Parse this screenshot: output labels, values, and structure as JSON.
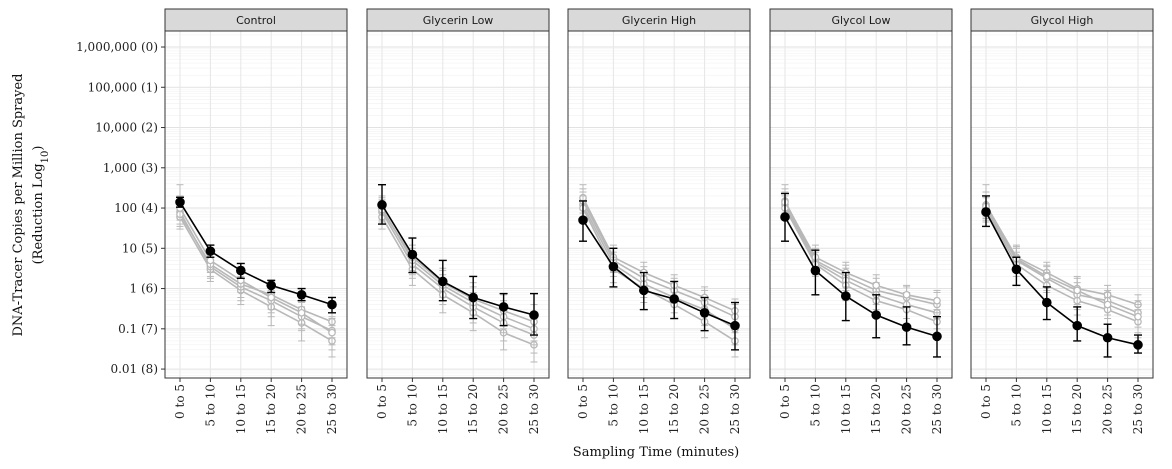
{
  "chart_data": {
    "type": "line",
    "xlabel": "Sampling Time (minutes)",
    "ylabel_line1": "DNA-Tracer Copies per Million Sprayed",
    "ylabel_line2_prefix": "(Reduction Log",
    "ylabel_line2_sub": "10",
    "ylabel_line2_suffix": ")",
    "yscale": "log10",
    "ylim": [
      0.006,
      2500000
    ],
    "ytick_values": [
      1000000,
      100000,
      10000,
      1000,
      100,
      10,
      1,
      0.1,
      0.01
    ],
    "ytick_labels": [
      "1,000,000 (0)",
      "100,000 (1)",
      "10,000 (2)",
      "1,000 (3)",
      "100 (4)",
      "10 (5)",
      "1 (6)",
      "0.1 (7)",
      "0.01 (8)"
    ],
    "categories": [
      "0 to 5",
      "5 to 10",
      "10 to 15",
      "15 to 20",
      "20 to 25",
      "25 to 30"
    ],
    "grid": true,
    "highlight_color": "#000000",
    "background_color": "#b8b8b8",
    "panels": [
      {
        "title": "Control",
        "main": {
          "values": [
            140,
            8.5,
            2.8,
            1.2,
            0.7,
            0.4
          ],
          "err_low": [
            105,
            6.0,
            1.8,
            0.8,
            0.5,
            0.25
          ],
          "err_high": [
            185,
            12.0,
            4.2,
            1.6,
            1.0,
            0.6
          ]
        },
        "background": [
          {
            "values": [
              60,
              3.0,
              0.9,
              0.35,
              0.14,
              0.05
            ],
            "err_low": [
              30,
              1.5,
              0.4,
              0.12,
              0.05,
              0.02
            ],
            "err_high": [
              110,
              6.0,
              2.0,
              0.9,
              0.35,
              0.12
            ]
          },
          {
            "values": [
              80,
              3.5,
              1.1,
              0.5,
              0.2,
              0.09
            ],
            "err_low": [
              40,
              1.8,
              0.5,
              0.2,
              0.09,
              0.04
            ],
            "err_high": [
              150,
              7.0,
              2.5,
              1.1,
              0.45,
              0.2
            ]
          },
          {
            "values": [
              70,
              4.0,
              1.3,
              0.7,
              0.3,
              0.15
            ],
            "err_low": [
              35,
              2.0,
              0.6,
              0.3,
              0.13,
              0.06
            ],
            "err_high": [
              200,
              8.0,
              3.0,
              1.5,
              0.7,
              0.35
            ]
          },
          {
            "values": [
              100,
              5.0,
              1.6,
              0.6,
              0.25,
              0.08
            ],
            "err_low": [
              50,
              2.5,
              0.8,
              0.25,
              0.1,
              0.03
            ],
            "err_high": [
              380,
              10.0,
              3.5,
              1.3,
              0.55,
              0.18
            ]
          }
        ]
      },
      {
        "title": "Glycerin Low",
        "main": {
          "values": [
            120,
            7.0,
            1.5,
            0.6,
            0.35,
            0.22
          ],
          "err_low": [
            40,
            2.5,
            0.5,
            0.18,
            0.12,
            0.07
          ],
          "err_high": [
            380,
            18.0,
            5.0,
            2.0,
            0.75,
            0.75
          ]
        },
        "background": [
          {
            "values": [
              60,
              3.0,
              0.7,
              0.25,
              0.08,
              0.04
            ],
            "err_low": [
              30,
              1.2,
              0.25,
              0.09,
              0.03,
              0.015
            ],
            "err_high": [
              120,
              6.0,
              1.5,
              0.6,
              0.2,
              0.1
            ]
          },
          {
            "values": [
              80,
              4.0,
              1.0,
              0.35,
              0.14,
              0.07
            ],
            "err_low": [
              40,
              1.8,
              0.4,
              0.14,
              0.05,
              0.025
            ],
            "err_high": [
              160,
              8.0,
              2.2,
              0.8,
              0.35,
              0.18
            ]
          },
          {
            "values": [
              100,
              5.0,
              1.2,
              0.45,
              0.2,
              0.1
            ],
            "err_low": [
              50,
              2.2,
              0.5,
              0.18,
              0.08,
              0.04
            ],
            "err_high": [
              200,
              10.0,
              2.8,
              1.1,
              0.5,
              0.25
            ]
          },
          {
            "values": [
              90,
              6.0,
              1.4,
              0.55,
              0.28,
              0.15
            ],
            "err_low": [
              45,
              2.8,
              0.6,
              0.22,
              0.1,
              0.05
            ],
            "err_high": [
              180,
              12.0,
              3.2,
              1.4,
              0.7,
              0.4
            ]
          }
        ]
      },
      {
        "title": "Glycerin High",
        "main": {
          "values": [
            50,
            3.5,
            0.9,
            0.55,
            0.25,
            0.12
          ],
          "err_low": [
            15,
            1.1,
            0.3,
            0.18,
            0.09,
            0.03
          ],
          "err_high": [
            150,
            10.0,
            2.5,
            1.5,
            0.6,
            0.45
          ]
        },
        "background": [
          {
            "values": [
              120,
              4.0,
              1.3,
              0.6,
              0.3,
              0.1
            ],
            "err_low": [
              60,
              2.0,
              0.6,
              0.25,
              0.12,
              0.04
            ],
            "err_high": [
              250,
              8.0,
              2.8,
              1.3,
              0.65,
              0.22
            ]
          },
          {
            "values": [
              150,
              5.0,
              1.8,
              0.9,
              0.45,
              0.2
            ],
            "err_low": [
              75,
              2.5,
              0.8,
              0.4,
              0.2,
              0.08
            ],
            "err_high": [
              300,
              10.0,
              3.5,
              1.8,
              0.9,
              0.4
            ]
          },
          {
            "values": [
              180,
              6.0,
              2.5,
              1.2,
              0.6,
              0.28
            ],
            "err_low": [
              90,
              3.0,
              1.1,
              0.5,
              0.25,
              0.11
            ],
            "err_high": [
              380,
              12.0,
              4.5,
              2.2,
              1.1,
              0.55
            ]
          },
          {
            "values": [
              100,
              3.0,
              1.0,
              0.4,
              0.15,
              0.05
            ],
            "err_low": [
              50,
              1.4,
              0.45,
              0.18,
              0.06,
              0.02
            ],
            "err_high": [
              200,
              6.0,
              2.0,
              0.8,
              0.35,
              0.11
            ]
          }
        ]
      },
      {
        "title": "Glycol Low",
        "main": {
          "values": [
            60,
            2.8,
            0.65,
            0.22,
            0.11,
            0.065
          ],
          "err_low": [
            15,
            0.7,
            0.16,
            0.06,
            0.04,
            0.02
          ],
          "err_high": [
            230,
            9.0,
            2.5,
            0.7,
            0.35,
            0.2
          ]
        },
        "background": [
          {
            "values": [
              150,
              5.0,
              2.0,
              0.9,
              0.6,
              0.4
            ],
            "err_low": [
              75,
              2.5,
              0.9,
              0.4,
              0.3,
              0.18
            ],
            "err_high": [
              300,
              10.0,
              3.8,
              1.8,
              1.1,
              0.8
            ]
          },
          {
            "values": [
              120,
              4.5,
              1.6,
              0.7,
              0.4,
              0.25
            ],
            "err_low": [
              60,
              2.2,
              0.7,
              0.3,
              0.18,
              0.1
            ],
            "err_high": [
              250,
              9.0,
              3.2,
              1.4,
              0.8,
              0.5
            ]
          },
          {
            "values": [
              100,
              4.0,
              1.2,
              0.5,
              0.3,
              0.15
            ],
            "err_low": [
              50,
              2.0,
              0.5,
              0.22,
              0.13,
              0.06
            ],
            "err_high": [
              200,
              8.0,
              2.5,
              1.0,
              0.6,
              0.3
            ]
          },
          {
            "values": [
              140,
              6.0,
              2.5,
              1.2,
              0.7,
              0.5
            ],
            "err_low": [
              70,
              3.0,
              1.1,
              0.55,
              0.35,
              0.25
            ],
            "err_high": [
              380,
              12.0,
              4.5,
              2.2,
              1.2,
              0.9
            ]
          }
        ]
      },
      {
        "title": "Glycol High",
        "main": {
          "values": [
            80,
            3.0,
            0.45,
            0.12,
            0.06,
            0.04
          ],
          "err_low": [
            35,
            1.2,
            0.17,
            0.05,
            0.02,
            0.025
          ],
          "err_high": [
            200,
            6.0,
            1.1,
            0.35,
            0.13,
            0.07
          ]
        },
        "background": [
          {
            "values": [
              120,
              6.0,
              2.5,
              1.0,
              0.7,
              0.4
            ],
            "err_low": [
              60,
              3.0,
              1.1,
              0.45,
              0.35,
              0.2
            ],
            "err_high": [
              250,
              12.0,
              4.5,
              2.0,
              1.2,
              0.7
            ]
          },
          {
            "values": [
              100,
              5.0,
              1.8,
              0.7,
              0.5,
              0.25
            ],
            "err_low": [
              50,
              2.5,
              0.8,
              0.3,
              0.22,
              0.11
            ],
            "err_high": [
              200,
              10.0,
              3.5,
              1.4,
              0.9,
              0.5
            ]
          },
          {
            "values": [
              90,
              4.0,
              1.2,
              0.5,
              0.3,
              0.15
            ],
            "err_low": [
              45,
              2.0,
              0.5,
              0.22,
              0.13,
              0.06
            ],
            "err_high": [
              180,
              8.0,
              2.5,
              1.0,
              0.6,
              0.3
            ]
          },
          {
            "values": [
              110,
              5.5,
              2.0,
              0.9,
              0.4,
              0.2
            ],
            "err_low": [
              55,
              2.7,
              0.9,
              0.4,
              0.18,
              0.08
            ],
            "err_high": [
              380,
              11.0,
              3.8,
              1.8,
              0.8,
              0.4
            ]
          }
        ]
      }
    ]
  }
}
